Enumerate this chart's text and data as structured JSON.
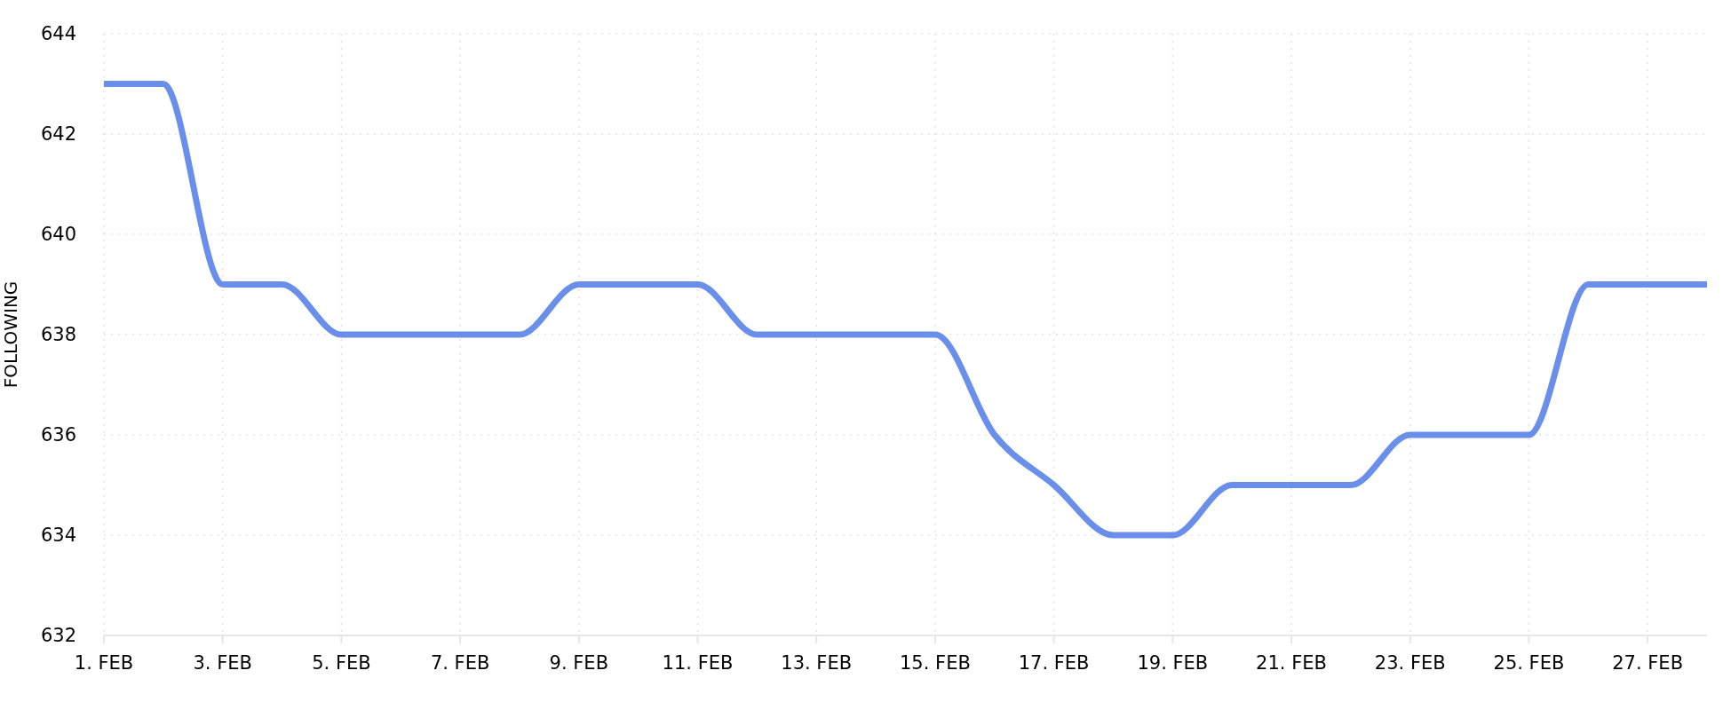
{
  "chart_data": {
    "type": "line",
    "ylabel": "FOLLOWING",
    "x": [
      "--02-01",
      "--02-02",
      "--02-03",
      "--02-04",
      "--02-05",
      "--02-06",
      "--02-07",
      "--02-08",
      "--02-09",
      "--02-10",
      "--02-11",
      "--02-12",
      "--02-13",
      "--02-14",
      "--02-15",
      "--02-16",
      "--02-17",
      "--02-18",
      "--02-19",
      "--02-20",
      "--02-21",
      "--02-22",
      "--02-23",
      "--02-24",
      "--02-25",
      "--02-26",
      "--02-27",
      "--02-28"
    ],
    "values": [
      643,
      643,
      639,
      639,
      638,
      638,
      638,
      638,
      639,
      639,
      639,
      638,
      638,
      638,
      638,
      636,
      635,
      634,
      634,
      635,
      635,
      635,
      636,
      636,
      636,
      639,
      639,
      639
    ],
    "color": "#6a8fea",
    "xlim": [
      "--02-01",
      "--02-28"
    ],
    "xticks": [
      {
        "value": "--02-01",
        "label": "1. FEB"
      },
      {
        "value": "--02-03",
        "label": "3. FEB"
      },
      {
        "value": "--02-05",
        "label": "5. FEB"
      },
      {
        "value": "--02-07",
        "label": "7. FEB"
      },
      {
        "value": "--02-09",
        "label": "9. FEB"
      },
      {
        "value": "--02-11",
        "label": "11. FEB"
      },
      {
        "value": "--02-13",
        "label": "13. FEB"
      },
      {
        "value": "--02-15",
        "label": "15. FEB"
      },
      {
        "value": "--02-17",
        "label": "17. FEB"
      },
      {
        "value": "--02-19",
        "label": "19. FEB"
      },
      {
        "value": "--02-21",
        "label": "21. FEB"
      },
      {
        "value": "--02-23",
        "label": "23. FEB"
      },
      {
        "value": "--02-25",
        "label": "25. FEB"
      },
      {
        "value": "--02-27",
        "label": "27. FEB"
      }
    ],
    "ylim": [
      632,
      644
    ],
    "yticks": [
      632,
      634,
      636,
      638,
      640,
      642,
      644
    ],
    "grid": true
  }
}
